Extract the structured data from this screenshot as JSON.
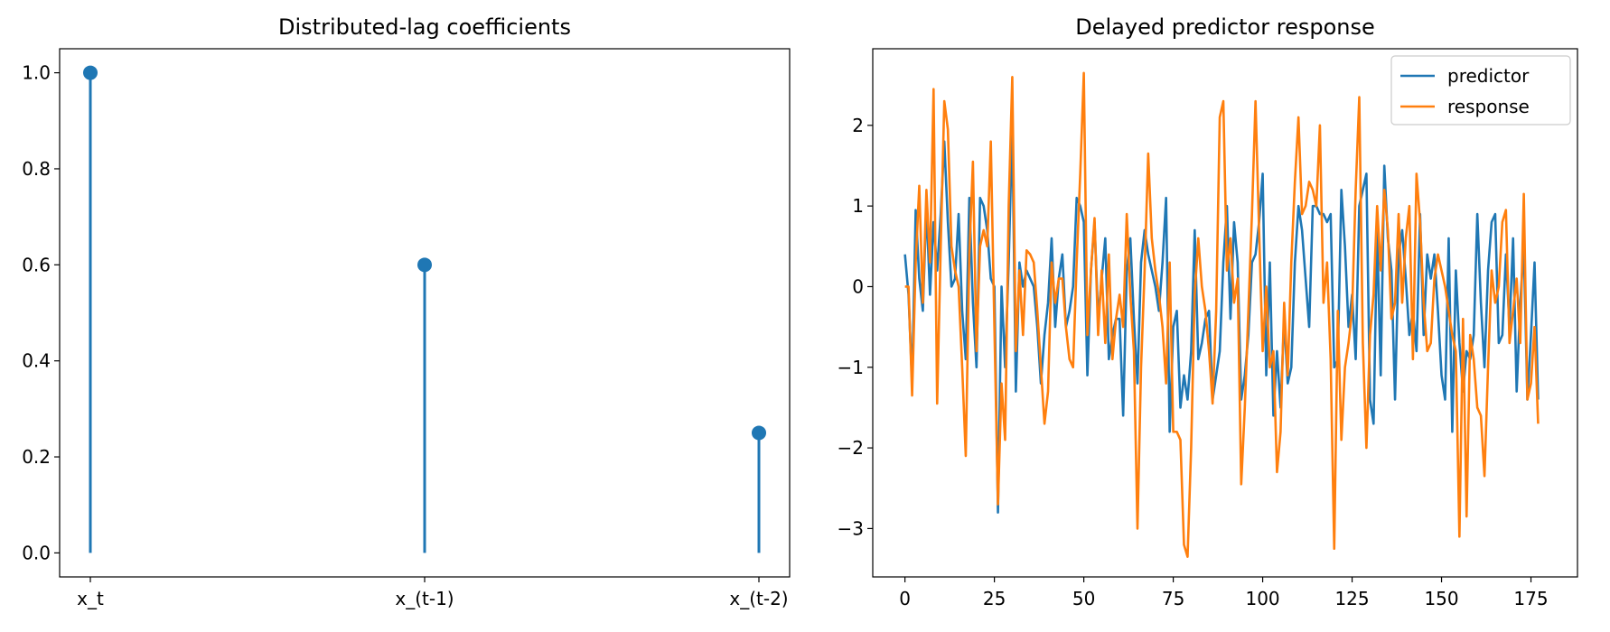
{
  "chart_data": [
    {
      "type": "stem",
      "title": "Distributed-lag coefficients",
      "xlabel": "",
      "ylabel": "",
      "categories": [
        "x_t",
        "x_(t-1)",
        "x_(t-2)"
      ],
      "values": [
        1.0,
        0.6,
        0.25
      ],
      "ylim": [
        -0.05,
        1.05
      ],
      "yticks": [
        0.0,
        0.2,
        0.4,
        0.6,
        0.8,
        1.0
      ],
      "grid": false,
      "color": "#1f77b4"
    },
    {
      "type": "line",
      "title": "Delayed predictor response",
      "xlabel": "",
      "ylabel": "",
      "xlim": [
        -9,
        188
      ],
      "ylim": [
        -3.6,
        2.95
      ],
      "xticks": [
        0,
        25,
        50,
        75,
        100,
        125,
        150,
        175
      ],
      "yticks": [
        -3,
        -2,
        -1,
        0,
        1,
        2
      ],
      "grid": false,
      "legend": "top-right",
      "series": [
        {
          "name": "predictor",
          "color": "#1f77b4",
          "values": [
            0.4,
            -0.1,
            -1.2,
            0.95,
            0.1,
            -0.3,
            1.0,
            -0.1,
            0.8,
            0.2,
            0.9,
            1.8,
            0.8,
            0.0,
            0.1,
            0.9,
            -0.3,
            -0.9,
            1.1,
            -0.2,
            -1.0,
            1.1,
            1.0,
            0.7,
            0.1,
            0.0,
            -2.8,
            0.0,
            -1.0,
            0.3,
            2.0,
            -1.3,
            0.3,
            0.0,
            0.2,
            0.1,
            0.0,
            -0.5,
            -1.2,
            -0.6,
            -0.2,
            0.6,
            -0.5,
            0.1,
            0.4,
            -0.5,
            -0.3,
            0.0,
            1.1,
            1.0,
            0.8,
            -1.1,
            0.2,
            0.8,
            -0.4,
            0.1,
            0.6,
            -0.9,
            -0.6,
            -0.4,
            -0.4,
            -1.6,
            0.2,
            0.6,
            -0.4,
            -1.2,
            0.3,
            0.7,
            0.4,
            0.2,
            0.0,
            -0.3,
            0.3,
            1.1,
            -1.8,
            -0.5,
            -0.3,
            -1.5,
            -1.1,
            -1.4,
            -0.8,
            0.7,
            -0.9,
            -0.7,
            -0.4,
            -0.3,
            -1.4,
            -1.1,
            -0.8,
            0.3,
            1.0,
            -0.4,
            0.8,
            0.3,
            -1.4,
            -1.1,
            -0.6,
            0.3,
            0.4,
            0.8,
            1.4,
            -1.1,
            0.3,
            -1.6,
            -0.8,
            -1.5,
            -0.4,
            -1.2,
            -1.0,
            0.3,
            1.0,
            0.7,
            0.1,
            -0.5,
            1.0,
            1.0,
            0.9,
            0.9,
            0.8,
            0.9,
            -1.0,
            -0.9,
            1.2,
            0.5,
            -0.5,
            -0.1,
            -0.9,
            1.0,
            1.2,
            1.4,
            -1.4,
            -1.7,
            0.7,
            -1.1,
            1.5,
            0.6,
            0.2,
            -1.4,
            0.4,
            0.7,
            0.1,
            -0.6,
            -0.3,
            -0.8,
            0.9,
            -0.6,
            0.4,
            0.1,
            0.4,
            -0.3,
            -1.1,
            -1.4,
            0.6,
            -1.8,
            0.2,
            -0.7,
            -1.3,
            -0.8,
            -0.9,
            -0.6,
            0.9,
            -0.2,
            -1.0,
            0.2,
            0.8,
            0.9,
            -0.7,
            -0.6,
            0.4,
            -0.5,
            0.6,
            -1.3,
            -0.2,
            0.5,
            -1.4,
            -0.6,
            0.3,
            -1.4
          ]
        },
        {
          "name": "response",
          "color": "#ff7f0e",
          "values": [
            0.0,
            0.0,
            -1.35,
            0.3,
            1.25,
            -0.2,
            1.2,
            0.3,
            2.45,
            -1.45,
            0.5,
            2.3,
            1.95,
            0.5,
            0.2,
            0.0,
            -1.0,
            -2.1,
            0.4,
            1.55,
            -0.8,
            0.5,
            0.7,
            0.5,
            1.8,
            -0.5,
            -2.7,
            -1.2,
            -1.9,
            1.0,
            2.6,
            -0.8,
            0.2,
            -0.6,
            0.45,
            0.4,
            0.3,
            -0.3,
            -1.0,
            -1.7,
            -1.3,
            0.3,
            -0.2,
            0.1,
            0.1,
            -0.5,
            -0.9,
            -1.0,
            0.3,
            1.4,
            2.65,
            -0.6,
            0.2,
            0.85,
            -0.6,
            0.2,
            -0.7,
            0.4,
            -0.9,
            -0.4,
            -0.1,
            -0.5,
            0.9,
            -0.1,
            -0.8,
            -3.0,
            -1.0,
            0.2,
            1.65,
            0.6,
            0.2,
            -0.1,
            -0.5,
            -1.2,
            0.3,
            -1.8,
            -1.8,
            -1.9,
            -3.2,
            -3.35,
            -2.0,
            -0.1,
            0.6,
            0.0,
            -0.3,
            -0.8,
            -1.45,
            -0.3,
            2.1,
            2.3,
            0.2,
            0.6,
            -0.2,
            0.1,
            -2.45,
            -1.5,
            -0.3,
            0.9,
            2.3,
            0.7,
            -0.8,
            0.0,
            -1.0,
            -0.8,
            -2.3,
            -1.8,
            -0.2,
            -1.1,
            0.3,
            1.3,
            2.1,
            0.9,
            1.0,
            1.3,
            1.2,
            1.0,
            2.0,
            -0.2,
            0.3,
            -0.9,
            -3.25,
            -0.3,
            -1.9,
            -1.0,
            -0.7,
            -0.3,
            1.2,
            2.35,
            -0.7,
            -2.0,
            -0.6,
            -0.1,
            1.0,
            0.2,
            1.2,
            0.7,
            -0.4,
            -0.2,
            0.9,
            -0.2,
            0.6,
            1.0,
            -0.9,
            1.4,
            0.8,
            -0.2,
            -0.8,
            -0.7,
            0.1,
            0.4,
            0.2,
            0.0,
            -0.3,
            -0.6,
            -0.8,
            -3.1,
            -0.4,
            -2.85,
            -0.6,
            -0.9,
            -1.5,
            -1.6,
            -2.35,
            -1.0,
            0.2,
            -0.2,
            0.0,
            0.8,
            0.95,
            -0.7,
            -0.3,
            0.1,
            -0.7,
            1.15,
            -1.4,
            -1.2,
            -0.5,
            -1.7
          ]
        }
      ]
    }
  ]
}
